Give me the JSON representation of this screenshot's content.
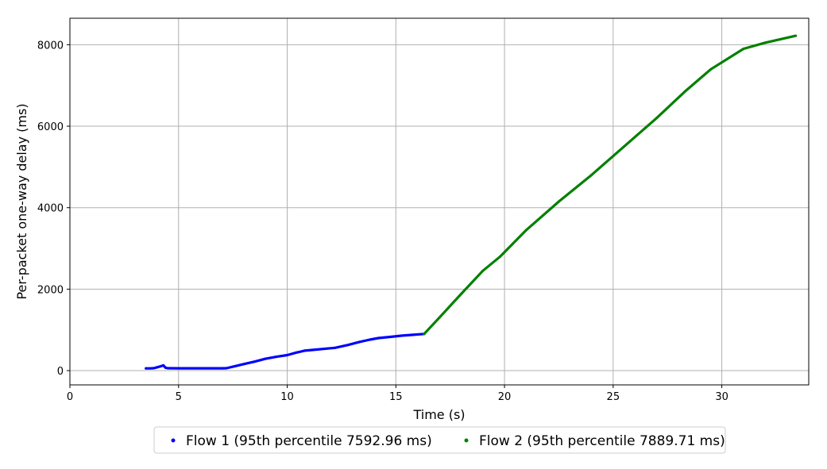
{
  "chart_data": {
    "type": "scatter",
    "xlabel": "Time (s)",
    "ylabel": "Per-packet one-way delay (ms)",
    "xlim": [
      0,
      34
    ],
    "ylim": [
      -350,
      8650
    ],
    "xticks": [
      0,
      5,
      10,
      15,
      20,
      25,
      30
    ],
    "yticks": [
      0,
      2000,
      4000,
      6000,
      8000
    ],
    "grid": true,
    "legend_position": "bottom-center",
    "series": [
      {
        "name": "Flow 1 (95th percentile 7592.96 ms)",
        "color": "#0000ff",
        "points": [
          [
            3.5,
            55
          ],
          [
            3.7,
            55
          ],
          [
            3.85,
            60
          ],
          [
            4.0,
            80
          ],
          [
            4.2,
            110
          ],
          [
            4.3,
            130
          ],
          [
            4.4,
            70
          ],
          [
            4.5,
            60
          ],
          [
            5.0,
            58
          ],
          [
            6.0,
            58
          ],
          [
            7.0,
            58
          ],
          [
            7.2,
            60
          ],
          [
            7.6,
            110
          ],
          [
            8.0,
            160
          ],
          [
            8.5,
            220
          ],
          [
            9.0,
            290
          ],
          [
            9.5,
            340
          ],
          [
            10.0,
            380
          ],
          [
            10.4,
            440
          ],
          [
            10.8,
            490
          ],
          [
            11.2,
            510
          ],
          [
            11.8,
            540
          ],
          [
            12.2,
            560
          ],
          [
            12.8,
            630
          ],
          [
            13.3,
            700
          ],
          [
            13.8,
            760
          ],
          [
            14.2,
            800
          ],
          [
            14.8,
            830
          ],
          [
            15.3,
            860
          ],
          [
            15.8,
            880
          ],
          [
            16.3,
            900
          ]
        ]
      },
      {
        "name": "Flow 2 (95th percentile 7889.71 ms)",
        "color": "#008000",
        "points": [
          [
            16.3,
            900
          ],
          [
            17.0,
            1300
          ],
          [
            18.0,
            1880
          ],
          [
            19.0,
            2450
          ],
          [
            19.8,
            2800
          ],
          [
            21.0,
            3450
          ],
          [
            22.5,
            4150
          ],
          [
            24.0,
            4800
          ],
          [
            25.5,
            5500
          ],
          [
            27.0,
            6200
          ],
          [
            28.3,
            6850
          ],
          [
            29.5,
            7400
          ],
          [
            31.0,
            7900
          ],
          [
            32.0,
            8050
          ],
          [
            33.4,
            8220
          ]
        ]
      }
    ]
  }
}
